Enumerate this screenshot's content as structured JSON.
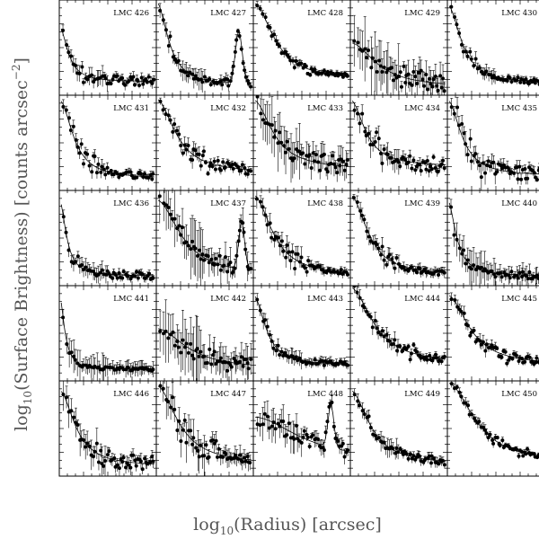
{
  "figure": {
    "xlabel": {
      "prefix": "log",
      "sub": "10",
      "rest": "(Radius) [arcsec]"
    },
    "ylabel": {
      "prefix": "log",
      "sub": "10",
      "rest": "(Surface Brightness) [counts arcsec",
      "sup": "−2",
      "end": "]"
    }
  },
  "chart_data": {
    "type": "scatter",
    "layout": "5x5 grid of small-multiple panels",
    "xlabel": "log10(Radius) [arcsec]",
    "ylabel": "log10(Surface Brightness) [counts arcsec^-2]",
    "x_range": [
      0,
      1
    ],
    "y_range": [
      0,
      1
    ],
    "point_style": "filled circles with vertical error bars, fitted profile curve",
    "panels": [
      {
        "label": "LMC 426",
        "core": 0.72,
        "rc": 0.1,
        "bg": 0.14,
        "knee": 0.2,
        "noise": 0.05,
        "err": 0.06,
        "bump": null
      },
      {
        "label": "LMC 427",
        "core": 0.98,
        "rc": 0.14,
        "bg": 0.1,
        "knee": 0.12,
        "noise": 0.04,
        "err": 0.07,
        "bump": {
          "x": 0.85,
          "h": 0.55,
          "w": 0.035
        }
      },
      {
        "label": "LMC 428",
        "core": 0.97,
        "rc": 0.24,
        "bg": 0.15,
        "knee": 0.08,
        "noise": 0.03,
        "err": 0.03,
        "bump": null
      },
      {
        "label": "LMC 429",
        "core": 0.55,
        "rc": 0.3,
        "bg": 0.08,
        "knee": 0.08,
        "noise": 0.08,
        "err": 0.2,
        "bump": null
      },
      {
        "label": "LMC 430",
        "core": 0.95,
        "rc": 0.16,
        "bg": 0.12,
        "knee": 0.12,
        "noise": 0.03,
        "err": 0.04,
        "bump": null
      },
      {
        "label": "LMC 431",
        "core": 0.95,
        "rc": 0.16,
        "bg": 0.12,
        "knee": 0.26,
        "noise": 0.04,
        "err": 0.04,
        "bump": null
      },
      {
        "label": "LMC 432",
        "core": 0.96,
        "rc": 0.22,
        "bg": 0.18,
        "knee": 0.15,
        "noise": 0.05,
        "err": 0.05,
        "bump": null
      },
      {
        "label": "LMC 433",
        "core": 0.95,
        "rc": 0.22,
        "bg": 0.22,
        "knee": 0.1,
        "noise": 0.1,
        "err": 0.18,
        "bump": null
      },
      {
        "label": "LMC 434",
        "core": 0.95,
        "rc": 0.17,
        "bg": 0.25,
        "knee": 0.22,
        "noise": 0.08,
        "err": 0.08,
        "bump": null
      },
      {
        "label": "LMC 435",
        "core": 0.95,
        "rc": 0.16,
        "bg": 0.15,
        "knee": 0.18,
        "noise": 0.07,
        "err": 0.08,
        "bump": null
      },
      {
        "label": "LMC 436",
        "core": 0.9,
        "rc": 0.08,
        "bg": 0.1,
        "knee": 0.18,
        "noise": 0.04,
        "err": 0.05,
        "bump": null
      },
      {
        "label": "LMC 437",
        "core": 0.9,
        "rc": 0.28,
        "bg": 0.1,
        "knee": 0.12,
        "noise": 0.06,
        "err": 0.2,
        "bump": {
          "x": 0.88,
          "h": 0.5,
          "w": 0.03
        }
      },
      {
        "label": "LMC 438",
        "core": 0.95,
        "rc": 0.22,
        "bg": 0.1,
        "knee": 0.15,
        "noise": 0.03,
        "err": 0.06,
        "bump": null
      },
      {
        "label": "LMC 439",
        "core": 0.95,
        "rc": 0.2,
        "bg": 0.1,
        "knee": 0.12,
        "noise": 0.03,
        "err": 0.06,
        "bump": null
      },
      {
        "label": "LMC 440",
        "core": 0.9,
        "rc": 0.1,
        "bg": 0.1,
        "knee": 0.15,
        "noise": 0.04,
        "err": 0.12,
        "bump": null
      },
      {
        "label": "LMC 441",
        "core": 0.9,
        "rc": 0.06,
        "bg": 0.12,
        "knee": 0.15,
        "noise": 0.02,
        "err": 0.1,
        "bump": null
      },
      {
        "label": "LMC 442",
        "core": 0.55,
        "rc": 0.35,
        "bg": 0.12,
        "knee": 0.06,
        "noise": 0.08,
        "err": 0.22,
        "bump": null
      },
      {
        "label": "LMC 443",
        "core": 0.9,
        "rc": 0.14,
        "bg": 0.16,
        "knee": 0.12,
        "noise": 0.03,
        "err": 0.05,
        "bump": null
      },
      {
        "label": "LMC 444",
        "core": 0.98,
        "rc": 0.26,
        "bg": 0.18,
        "knee": 0.12,
        "noise": 0.04,
        "err": 0.05,
        "bump": null
      },
      {
        "label": "LMC 445",
        "core": 0.9,
        "rc": 0.25,
        "bg": 0.16,
        "knee": 0.1,
        "noise": 0.04,
        "err": 0.04,
        "bump": null
      },
      {
        "label": "LMC 446",
        "core": 0.9,
        "rc": 0.18,
        "bg": 0.1,
        "knee": 0.12,
        "noise": 0.08,
        "err": 0.1,
        "bump": null
      },
      {
        "label": "LMC 447",
        "core": 0.95,
        "rc": 0.25,
        "bg": 0.12,
        "knee": 0.3,
        "noise": 0.04,
        "err": 0.12,
        "bump": null
      },
      {
        "label": "LMC 448",
        "core": 0.62,
        "rc": 0.55,
        "bg": 0.15,
        "knee": 0.05,
        "noise": 0.08,
        "err": 0.1,
        "bump": {
          "x": 0.8,
          "h": 0.45,
          "w": 0.03
        }
      },
      {
        "label": "LMC 449",
        "core": 0.9,
        "rc": 0.22,
        "bg": 0.12,
        "knee": 0.1,
        "noise": 0.04,
        "err": 0.06,
        "bump": null
      },
      {
        "label": "LMC 450",
        "core": 0.98,
        "rc": 0.32,
        "bg": 0.12,
        "knee": 0.06,
        "noise": 0.03,
        "err": 0.03,
        "bump": null
      }
    ]
  }
}
